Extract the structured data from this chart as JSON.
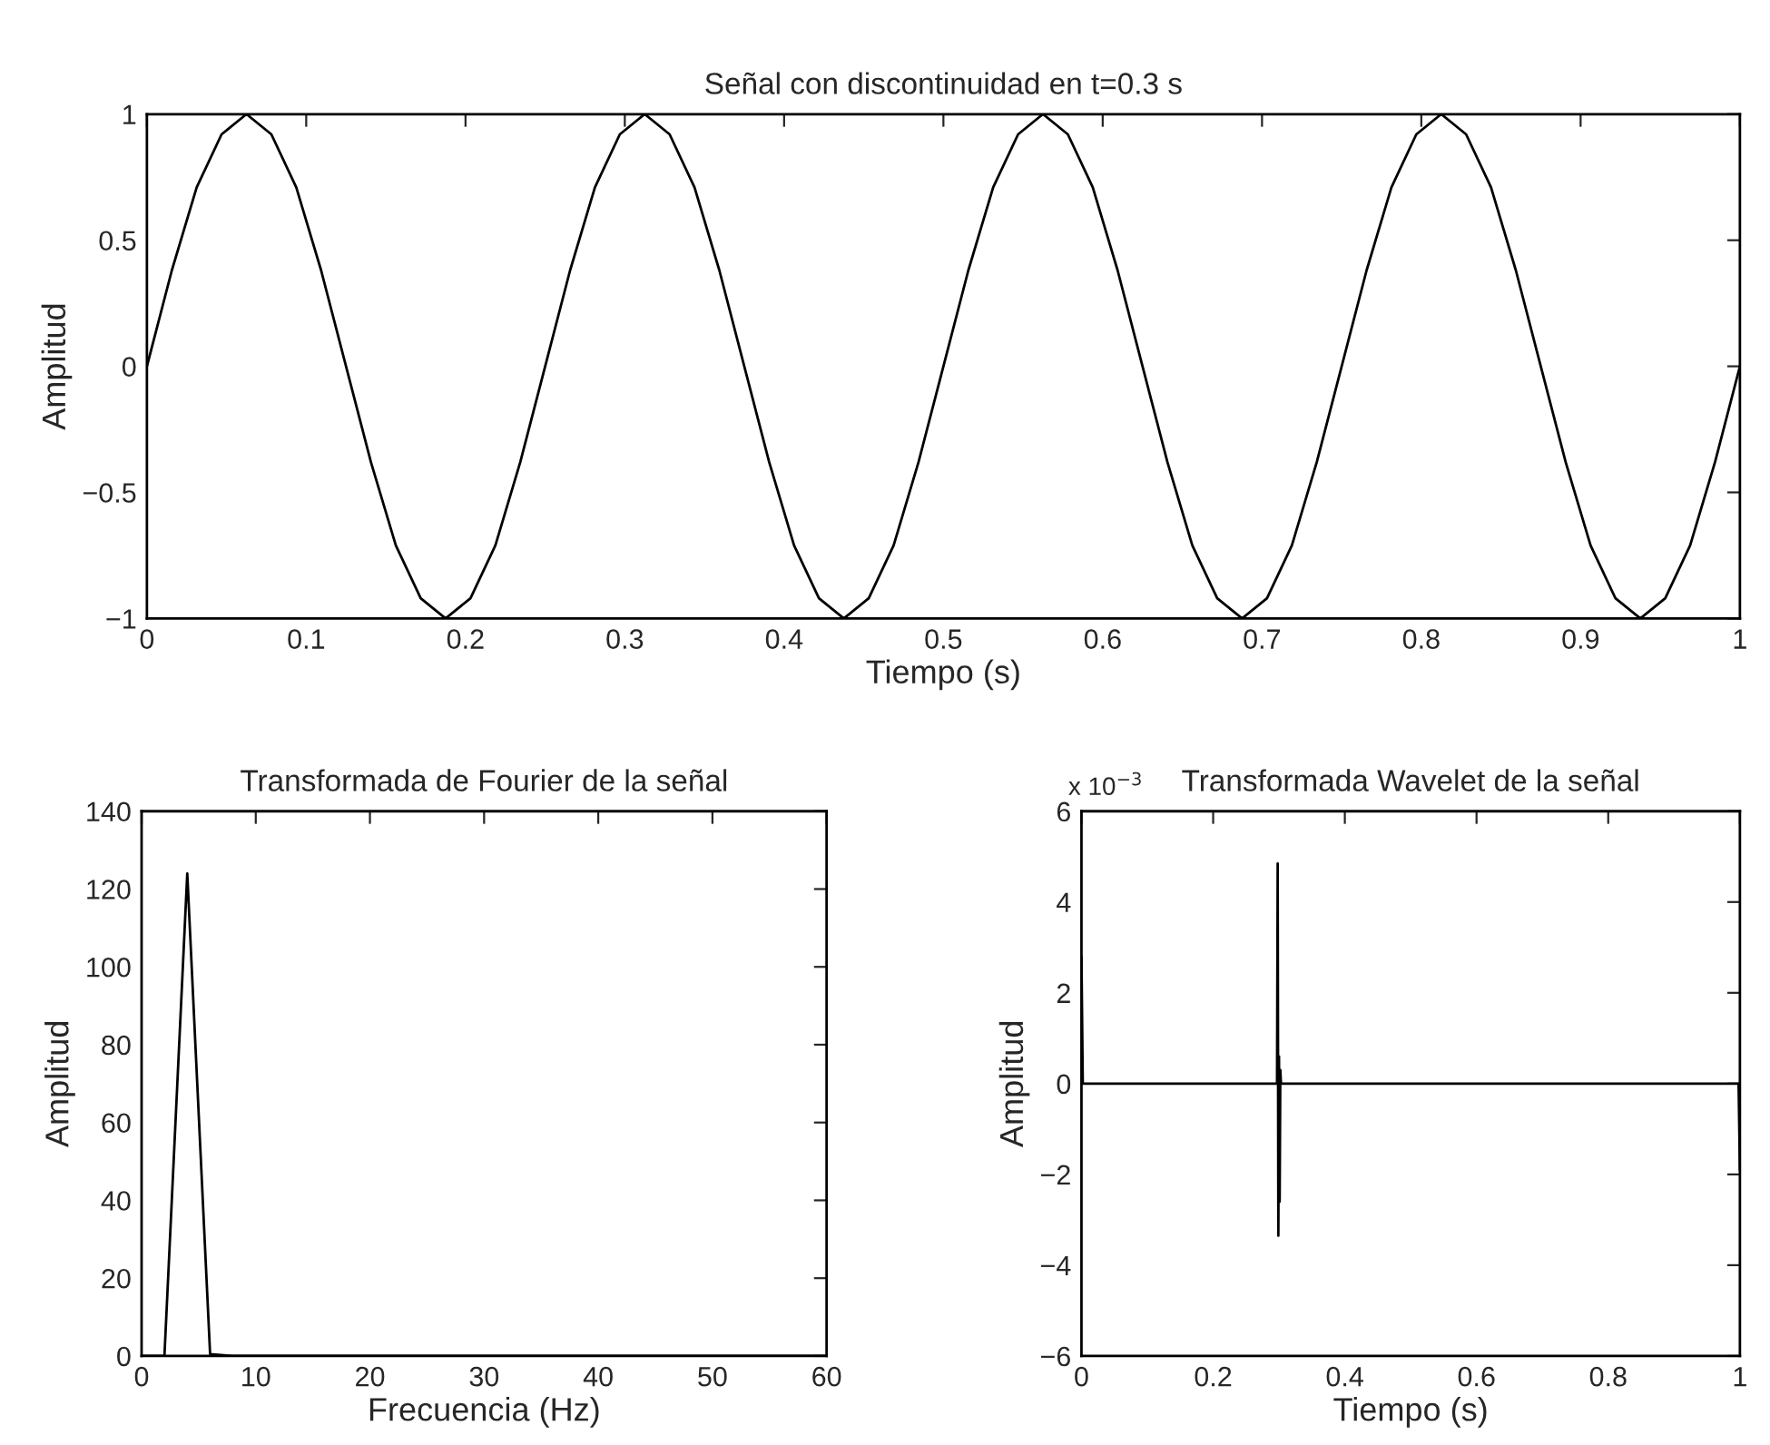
{
  "chart_data": [
    {
      "type": "line",
      "title": "Señal con discontinuidad en t=0.3 s",
      "xlabel": "Tiempo (s)",
      "ylabel": "Amplitud",
      "xlim": [
        0,
        1
      ],
      "ylim": [
        -1,
        1
      ],
      "xticks": [
        0,
        0.1,
        0.2,
        0.3,
        0.4,
        0.5,
        0.6,
        0.7,
        0.8,
        0.9,
        1
      ],
      "yticks": [
        -1,
        -0.5,
        0,
        0.5,
        1
      ],
      "grid": false,
      "series": [
        {
          "color": "#000000",
          "x": [
            0,
            0.015625,
            0.03125,
            0.046875,
            0.0625,
            0.078125,
            0.09375,
            0.109375,
            0.125,
            0.140625,
            0.15625,
            0.171875,
            0.1875,
            0.203125,
            0.21875,
            0.234375,
            0.25,
            0.265625,
            0.28125,
            0.296875,
            0.3125,
            0.328125,
            0.34375,
            0.359375,
            0.375,
            0.390625,
            0.40625,
            0.421875,
            0.4375,
            0.453125,
            0.46875,
            0.484375,
            0.5,
            0.515625,
            0.53125,
            0.546875,
            0.5625,
            0.578125,
            0.59375,
            0.609375,
            0.625,
            0.640625,
            0.65625,
            0.671875,
            0.6875,
            0.703125,
            0.71875,
            0.734375,
            0.75,
            0.765625,
            0.78125,
            0.796875,
            0.8125,
            0.828125,
            0.84375,
            0.859375,
            0.875,
            0.890625,
            0.90625,
            0.921875,
            0.9375,
            0.953125,
            0.96875,
            0.984375,
            1
          ],
          "values": [
            0,
            0.38,
            0.71,
            0.92,
            1,
            0.92,
            0.71,
            0.38,
            0,
            -0.38,
            -0.71,
            -0.92,
            -1,
            -0.92,
            -0.71,
            -0.38,
            0,
            0.38,
            0.71,
            0.92,
            1,
            0.92,
            0.71,
            0.38,
            0,
            -0.38,
            -0.71,
            -0.92,
            -1,
            -0.92,
            -0.71,
            -0.38,
            0,
            0.38,
            0.71,
            0.92,
            1,
            0.92,
            0.71,
            0.38,
            0,
            -0.38,
            -0.71,
            -0.92,
            -1,
            -0.92,
            -0.71,
            -0.38,
            0,
            0.38,
            0.71,
            0.92,
            1,
            0.92,
            0.71,
            0.38,
            0,
            -0.38,
            -0.71,
            -0.92,
            -1,
            -0.92,
            -0.71,
            -0.38,
            0
          ]
        }
      ]
    },
    {
      "type": "line",
      "title": "Transformada de Fourier de la señal",
      "xlabel": "Frecuencia (Hz)",
      "ylabel": "Amplitud",
      "xlim": [
        0,
        60
      ],
      "ylim": [
        0,
        140
      ],
      "xticks": [
        0,
        10,
        20,
        30,
        40,
        50,
        60
      ],
      "yticks": [
        0,
        20,
        40,
        60,
        80,
        100,
        120,
        140
      ],
      "grid": false,
      "series": [
        {
          "color": "#000000",
          "x": [
            0,
            2,
            4,
            6,
            8,
            10,
            60
          ],
          "values": [
            0,
            0,
            124,
            0.5,
            0,
            0,
            0
          ]
        }
      ]
    },
    {
      "type": "line",
      "title": "Transformada Wavelet de la señal",
      "xlabel": "Tiempo (s)",
      "ylabel": "Amplitud",
      "annotations": [
        "x 10$^{−3}$"
      ],
      "xlim": [
        0,
        1
      ],
      "ylim": [
        -6,
        6
      ],
      "xticks": [
        0,
        0.2,
        0.4,
        0.6,
        0.8,
        1
      ],
      "yticks": [
        -6,
        -4,
        -2,
        0,
        2,
        4,
        6
      ],
      "grid": false,
      "series": [
        {
          "color": "#000000",
          "x": [
            0,
            0.002,
            0.297,
            0.298,
            0.299,
            0.3,
            0.301,
            0.302,
            0.303,
            0.998,
            1
          ],
          "values": [
            2.8,
            0,
            0,
            4.85,
            -3.35,
            0.6,
            -2.6,
            0.3,
            0,
            0,
            -1.9
          ]
        }
      ]
    }
  ]
}
